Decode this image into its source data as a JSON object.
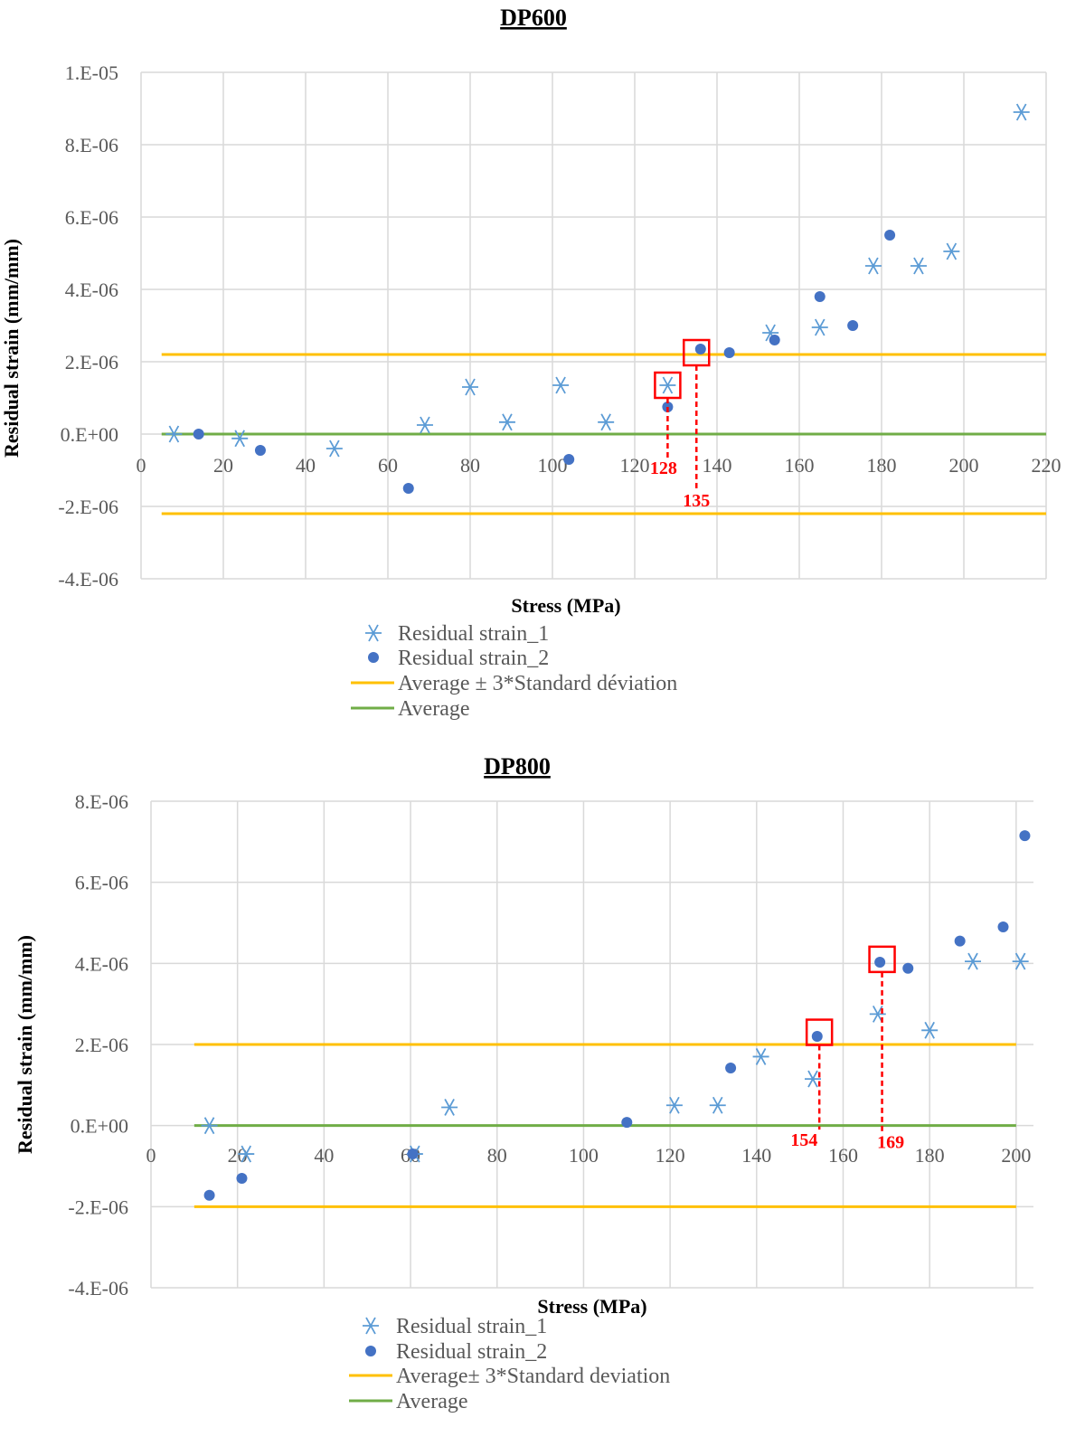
{
  "colors": {
    "series1": "#5b9bd5",
    "series2": "#4472c4",
    "band": "#ffc000",
    "average": "#70ad47",
    "annotation": "#ff0000",
    "grid": "#d9d9d9",
    "tick": "#595959"
  },
  "chart_data": [
    {
      "type": "scatter",
      "title": "DP600",
      "xlabel": "Stress (MPa)",
      "ylabel": "Residual strain (mm/mm)",
      "xlim": [
        0,
        220
      ],
      "ylim": [
        -4e-06,
        1e-05
      ],
      "x_ticks": [
        0,
        20,
        40,
        60,
        80,
        100,
        120,
        140,
        160,
        180,
        200,
        220
      ],
      "x_tick_labels": [
        "0",
        "20",
        "40",
        "60",
        "80",
        "100",
        "120",
        "140",
        "160",
        "180",
        "200",
        "220"
      ],
      "y_ticks": [
        -4e-06,
        -2e-06,
        0,
        2e-06,
        4e-06,
        6e-06,
        8e-06,
        1e-05
      ],
      "y_tick_labels": [
        "-4.E-06",
        "-2.E-06",
        "0.E+00",
        "2.E-06",
        "4.E-06",
        "6.E-06",
        "8.E-06",
        "1.E-05"
      ],
      "series": [
        {
          "name": "Residual strain_1",
          "marker": "asterisk",
          "x": [
            8,
            24,
            47,
            69,
            80,
            89,
            102,
            113,
            128,
            153,
            165,
            178,
            189,
            197,
            214
          ],
          "y": [
            0,
            -1.2e-07,
            -4e-07,
            2.5e-07,
            1.3e-06,
            3.3e-07,
            1.35e-06,
            3.3e-07,
            1.35e-06,
            2.8e-06,
            2.95e-06,
            4.65e-06,
            4.65e-06,
            5.05e-06,
            8.9e-06
          ]
        },
        {
          "name": "Residual strain_2",
          "marker": "dot",
          "x": [
            14,
            29,
            65,
            104,
            128,
            136,
            143,
            154,
            165,
            173,
            182
          ],
          "y": [
            0,
            -4.5e-07,
            -1.5e-06,
            -7e-07,
            7.5e-07,
            2.35e-06,
            2.25e-06,
            2.6e-06,
            3.8e-06,
            3e-06,
            5.5e-06
          ]
        }
      ],
      "bands": {
        "upper": 2.2e-06,
        "lower": -2.2e-06,
        "average": 0,
        "x_from": 5,
        "x_to": 220
      },
      "annotations": [
        {
          "label": "128",
          "x": 128,
          "y": 1.35e-06,
          "label_x": 127,
          "label_y": -1.1e-06
        },
        {
          "label": "135",
          "x": 135,
          "y": 2.25e-06,
          "label_x": 135,
          "label_y": -2e-06
        }
      ],
      "legend": [
        "Residual strain_1",
        "Residual strain_2",
        "Average ± 3*Standard déviation",
        "Average"
      ]
    },
    {
      "type": "scatter",
      "title": "DP800",
      "xlabel": "Stress (MPa)",
      "ylabel": "Residual strain (mm/mm)",
      "xlim": [
        0,
        204
      ],
      "ylim": [
        -4e-06,
        8e-06
      ],
      "x_ticks": [
        0,
        20,
        40,
        60,
        80,
        100,
        120,
        140,
        160,
        180,
        200
      ],
      "x_tick_labels": [
        "0",
        "20",
        "40",
        "60",
        "80",
        "100",
        "120",
        "140",
        "160",
        "180",
        "200"
      ],
      "y_ticks": [
        -4e-06,
        -2e-06,
        0,
        2e-06,
        4e-06,
        6e-06,
        8e-06
      ],
      "y_tick_labels": [
        "-4.E-06",
        "-2.E-06",
        "0.E+00",
        "2.E-06",
        "4.E-06",
        "6.E-06",
        "8.E-06"
      ],
      "series": [
        {
          "name": "Residual strain_1",
          "marker": "asterisk",
          "x": [
            13.5,
            22,
            61,
            69,
            121,
            131,
            141,
            153,
            168,
            180,
            190,
            201
          ],
          "y": [
            0,
            -7e-07,
            -7e-07,
            4.5e-07,
            5e-07,
            5e-07,
            1.7e-06,
            1.15e-06,
            2.75e-06,
            2.35e-06,
            4.05e-06,
            4.05e-06
          ]
        },
        {
          "name": "Residual strain_2",
          "marker": "dot",
          "x": [
            13.5,
            21,
            60.5,
            110,
            134,
            154,
            168.5,
            175,
            187,
            197,
            202
          ],
          "y": [
            -1.72e-06,
            -1.3e-06,
            -7e-07,
            8e-08,
            1.42e-06,
            2.2e-06,
            4.03e-06,
            3.88e-06,
            4.55e-06,
            4.9e-06,
            7.15e-06
          ]
        }
      ],
      "bands": {
        "upper": 2e-06,
        "lower": -2e-06,
        "average": 0,
        "x_from": 10,
        "x_to": 200
      },
      "annotations": [
        {
          "label": "154",
          "x": 154.5,
          "y": 2.3e-06,
          "label_x": 151,
          "label_y": -5e-07
        },
        {
          "label": "169",
          "x": 169,
          "y": 4.1e-06,
          "label_x": 171,
          "label_y": -5.5e-07
        }
      ],
      "legend": [
        "Residual strain_1",
        "Residual strain_2",
        "Average± 3*Standard deviation",
        "Average"
      ]
    }
  ]
}
